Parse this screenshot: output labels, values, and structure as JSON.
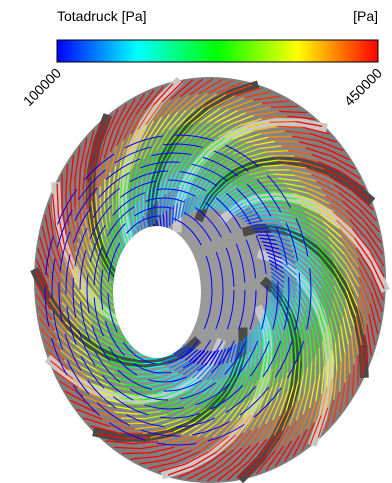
{
  "legend": {
    "title": "Totadruck [Pa]",
    "unit": "[Pa]",
    "min": 100000,
    "max": 450000,
    "colors": [
      "#0000ff",
      "#00ffff",
      "#00ff00",
      "#ffff00",
      "#ff0000"
    ]
  }
}
